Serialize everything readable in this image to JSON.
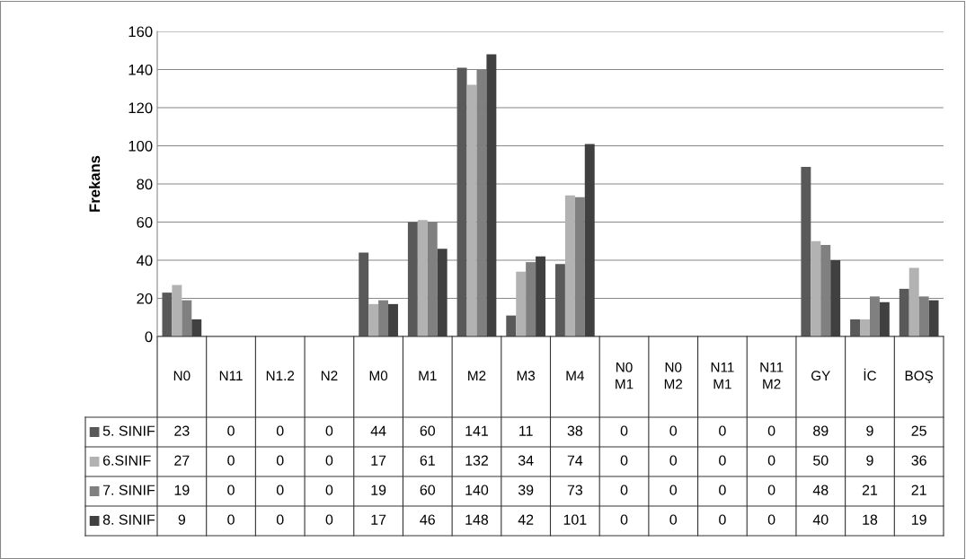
{
  "chart_data": {
    "type": "bar",
    "ylabel": "Frekans",
    "categories": [
      "N0",
      "N11",
      "N1.2",
      "N2",
      "M0",
      "M1",
      "M2",
      "M3",
      "M4",
      "N0 M1",
      "N0 M2",
      "N11 M1",
      "N11 M2",
      "GY",
      "İC",
      "BOŞ"
    ],
    "series": [
      {
        "name": "5. SINIF",
        "color": "#595959",
        "values": [
          23,
          0,
          0,
          0,
          44,
          60,
          141,
          11,
          38,
          0,
          0,
          0,
          0,
          89,
          9,
          25
        ]
      },
      {
        "name": "6.SINIF",
        "color": "#b2b2b2",
        "values": [
          27,
          0,
          0,
          0,
          17,
          61,
          132,
          34,
          74,
          0,
          0,
          0,
          0,
          50,
          9,
          36
        ]
      },
      {
        "name": "7. SINIF",
        "color": "#808080",
        "values": [
          19,
          0,
          0,
          0,
          19,
          60,
          140,
          39,
          73,
          0,
          0,
          0,
          0,
          48,
          21,
          21
        ]
      },
      {
        "name": "8. SINIF",
        "color": "#404040",
        "values": [
          9,
          0,
          0,
          0,
          17,
          46,
          148,
          42,
          101,
          0,
          0,
          0,
          0,
          40,
          18,
          19
        ]
      }
    ],
    "ylim": [
      0,
      160
    ],
    "yticks": [
      0,
      20,
      40,
      60,
      80,
      100,
      120,
      140,
      160
    ],
    "grid": "y",
    "legend": "left",
    "data_labels": true
  }
}
